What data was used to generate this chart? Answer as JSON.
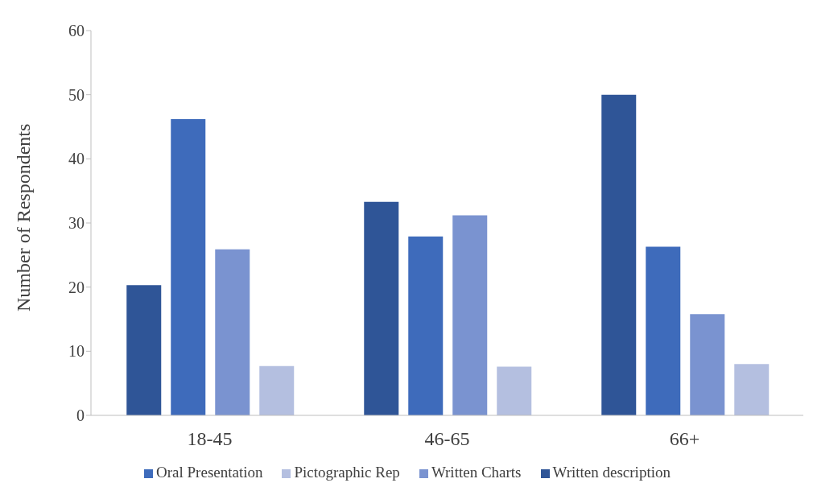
{
  "chart_data": {
    "type": "bar",
    "ylabel": "Number of Respondents",
    "categories": [
      "18-45",
      "46-65",
      "66+"
    ],
    "series": [
      {
        "name": "Written description",
        "color": "#2f5597",
        "values": [
          20.3,
          33.3,
          50
        ]
      },
      {
        "name": "Oral Presentation",
        "color": "#3e6bbb",
        "values": [
          46.2,
          27.9,
          26.3
        ]
      },
      {
        "name": "Written Charts",
        "color": "#7a93d0",
        "values": [
          25.9,
          31.2,
          15.8
        ]
      },
      {
        "name": "Pictographic Rep",
        "color": "#b4bfe0",
        "values": [
          7.7,
          7.6,
          8.0
        ]
      }
    ],
    "ylim": [
      0,
      60
    ],
    "yticks": [
      0,
      10,
      20,
      30,
      40,
      50,
      60
    ],
    "grid": false,
    "legend": "bottom"
  }
}
